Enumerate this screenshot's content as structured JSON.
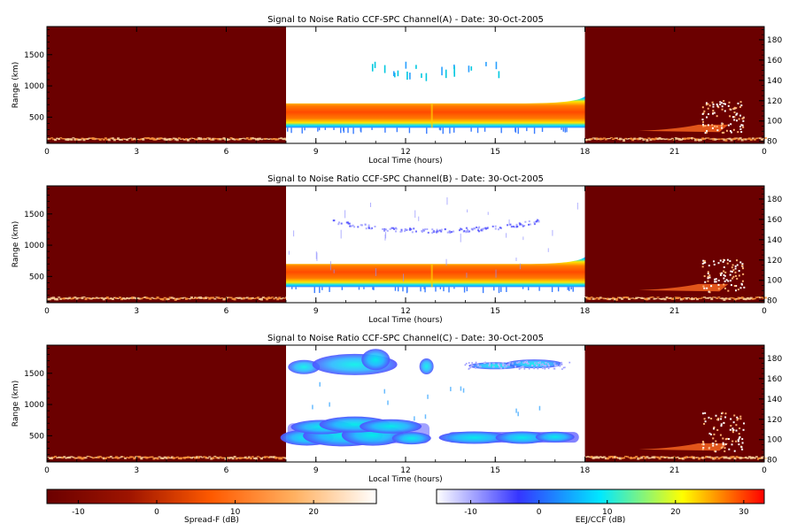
{
  "chart_data": [
    {
      "type": "heatmap",
      "title": "Signal to Noise Ratio CCF-SPC Channel(A) - Date: 30-Oct-2005",
      "xlabel": "Local Time (hours)",
      "ylabel": "Range (km)",
      "xlim": [
        0,
        24
      ],
      "ylim": [
        80,
        1950
      ],
      "x_ticks": [
        "0",
        "3",
        "6",
        "9",
        "12",
        "15",
        "18",
        "21",
        "0"
      ],
      "x_tick_values": [
        0,
        3,
        6,
        9,
        12,
        15,
        18,
        21,
        24
      ],
      "y_ticks": [
        "500",
        "1000",
        "1500"
      ],
      "y_tick_values": [
        500,
        1000,
        1500
      ],
      "y2_ticks": [
        "80",
        "100",
        "120",
        "140",
        "160",
        "180"
      ],
      "y2_tick_values": [
        80,
        100,
        120,
        140,
        160,
        180
      ],
      "y2lim": [
        78,
        193
      ],
      "spread_f_windows_hours": [
        [
          0,
          8
        ],
        [
          18,
          24
        ]
      ],
      "eej_window_hours": [
        8,
        18
      ],
      "layers": [
        {
          "kind": "band",
          "t0": 8,
          "t1": 18,
          "r_low": 330,
          "r_high": 720,
          "core_low": 430,
          "core_high": 620
        },
        {
          "kind": "sparse_echoes",
          "t0": 10.8,
          "t1": 15.2,
          "r_low": 1200,
          "r_high": 1390
        }
      ]
    },
    {
      "type": "heatmap",
      "title": "Signal to Noise Ratio CCF-SPC Channel(B) - Date: 30-Oct-2005",
      "xlabel": "Local Time (hours)",
      "ylabel": "Range (km)",
      "xlim": [
        0,
        24
      ],
      "ylim": [
        80,
        1950
      ],
      "x_ticks": [
        "0",
        "3",
        "6",
        "9",
        "12",
        "15",
        "18",
        "21",
        "0"
      ],
      "x_tick_values": [
        0,
        3,
        6,
        9,
        12,
        15,
        18,
        21,
        24
      ],
      "y_ticks": [
        "500",
        "1000",
        "1500"
      ],
      "y_tick_values": [
        500,
        1000,
        1500
      ],
      "y2_ticks": [
        "80",
        "100",
        "120",
        "140",
        "160",
        "180"
      ],
      "y2_tick_values": [
        80,
        100,
        120,
        140,
        160,
        180
      ],
      "y2lim": [
        78,
        193
      ],
      "spread_f_windows_hours": [
        [
          0,
          8
        ],
        [
          18,
          24
        ]
      ],
      "eej_window_hours": [
        8,
        18
      ],
      "layers": [
        {
          "kind": "band",
          "t0": 8,
          "t1": 18,
          "r_low": 330,
          "r_high": 700,
          "core_low": 400,
          "core_high": 620
        },
        {
          "kind": "faint_arc",
          "t0": 9.5,
          "t1": 16.5,
          "r_low": 1150,
          "r_high": 1400
        }
      ]
    },
    {
      "type": "heatmap",
      "title": "Signal to Noise Ratio CCF-SPC Channel(C) - Date: 30-Oct-2005",
      "xlabel": "Local Time (hours)",
      "ylabel": "Range (km)",
      "xlim": [
        0,
        24
      ],
      "ylim": [
        80,
        1950
      ],
      "x_ticks": [
        "0",
        "3",
        "6",
        "9",
        "12",
        "15",
        "18",
        "21",
        "0"
      ],
      "x_tick_values": [
        0,
        3,
        6,
        9,
        12,
        15,
        18,
        21,
        24
      ],
      "y_ticks": [
        "500",
        "1000",
        "1500"
      ],
      "y_tick_values": [
        500,
        1000,
        1500
      ],
      "y2_ticks": [
        "80",
        "100",
        "120",
        "140",
        "160",
        "180"
      ],
      "y2_tick_values": [
        80,
        100,
        120,
        140,
        160,
        180
      ],
      "y2lim": [
        78,
        193
      ],
      "spread_f_windows_hours": [
        [
          0,
          8
        ],
        [
          18,
          24
        ]
      ],
      "eej_window_hours": [
        8,
        18
      ],
      "layers": [
        {
          "kind": "blob_band",
          "t0": 8,
          "t1": 17.8,
          "r_low": 370,
          "r_high": 740
        },
        {
          "kind": "upper_band",
          "t0": 8.1,
          "t1": 17.5,
          "r_low": 1500,
          "r_high": 1830
        }
      ]
    }
  ],
  "colorbars": [
    {
      "label": "Spread-F (dB)",
      "ticks": [
        "-10",
        "0",
        "10",
        "20"
      ],
      "tick_values": [
        -10,
        0,
        10,
        20
      ],
      "range": [
        -14,
        28
      ],
      "stops": [
        "#6b0000",
        "#9e1400",
        "#ff5a00",
        "#ffb060",
        "#ffffff"
      ]
    },
    {
      "label": "EEJ/CCF (dB)",
      "ticks": [
        "-10",
        "0",
        "10",
        "20",
        "30"
      ],
      "tick_values": [
        -10,
        0,
        10,
        20,
        30
      ],
      "range": [
        -15,
        33
      ],
      "stops": [
        "#ffffff",
        "#3535ff",
        "#00e8ff",
        "#ffff00",
        "#ff0000"
      ]
    }
  ]
}
